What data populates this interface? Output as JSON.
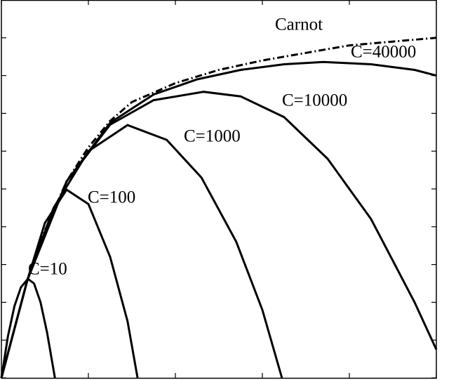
{
  "chart_data": {
    "type": "line",
    "xlim": [
      0,
      1
    ],
    "ylim": [
      0,
      1
    ],
    "xticks": [
      0,
      0.2,
      0.4,
      0.6,
      0.8,
      1
    ],
    "yticks": [
      0,
      0.1,
      0.2,
      0.3,
      0.4,
      0.5,
      0.6,
      0.7,
      0.8,
      0.9,
      1
    ],
    "series": [
      {
        "name": "Carnot",
        "color": "#000000",
        "linestyle": "dashdot",
        "x": [
          0,
          0.03,
          0.06,
          0.1,
          0.15,
          0.2,
          0.25,
          0.3,
          0.4,
          0.5,
          0.6,
          0.7,
          0.8,
          0.9,
          1.0
        ],
        "values": [
          0,
          0.13,
          0.26,
          0.39,
          0.52,
          0.61,
          0.68,
          0.73,
          0.78,
          0.815,
          0.84,
          0.86,
          0.88,
          0.89,
          0.9
        ]
      },
      {
        "name": "C=40000",
        "color": "#000000",
        "linestyle": "solid",
        "x": [
          0,
          0.06,
          0.15,
          0.25,
          0.35,
          0.45,
          0.55,
          0.65,
          0.74,
          0.85,
          0.95,
          1.0
        ],
        "values": [
          0,
          0.26,
          0.52,
          0.675,
          0.75,
          0.79,
          0.815,
          0.83,
          0.836,
          0.83,
          0.815,
          0.8
        ]
      },
      {
        "name": "C=10000",
        "color": "#000000",
        "linestyle": "solid",
        "x": [
          0,
          0.06,
          0.15,
          0.25,
          0.35,
          0.465,
          0.55,
          0.65,
          0.75,
          0.85,
          0.95,
          1.0
        ],
        "values": [
          0,
          0.26,
          0.52,
          0.67,
          0.735,
          0.757,
          0.745,
          0.69,
          0.58,
          0.42,
          0.2,
          0.075
        ]
      },
      {
        "name": "C=1000",
        "color": "#000000",
        "linestyle": "solid",
        "x": [
          0,
          0.06,
          0.12,
          0.2,
          0.29,
          0.38,
          0.46,
          0.54,
          0.6,
          0.645
        ],
        "values": [
          0,
          0.26,
          0.45,
          0.6,
          0.669,
          0.63,
          0.53,
          0.36,
          0.18,
          0
        ]
      },
      {
        "name": "C=100",
        "color": "#000000",
        "linestyle": "solid",
        "x": [
          0,
          0.03,
          0.06,
          0.1,
          0.15,
          0.2,
          0.25,
          0.29,
          0.313
        ],
        "values": [
          0,
          0.13,
          0.26,
          0.41,
          0.498,
          0.46,
          0.32,
          0.15,
          0
        ]
      },
      {
        "name": "C=10",
        "color": "#000000",
        "linestyle": "solid",
        "x": [
          0,
          0.015,
          0.03,
          0.045,
          0.061,
          0.075,
          0.09,
          0.105,
          0.123
        ],
        "values": [
          0,
          0.11,
          0.19,
          0.24,
          0.262,
          0.25,
          0.2,
          0.12,
          0
        ]
      }
    ]
  }
}
